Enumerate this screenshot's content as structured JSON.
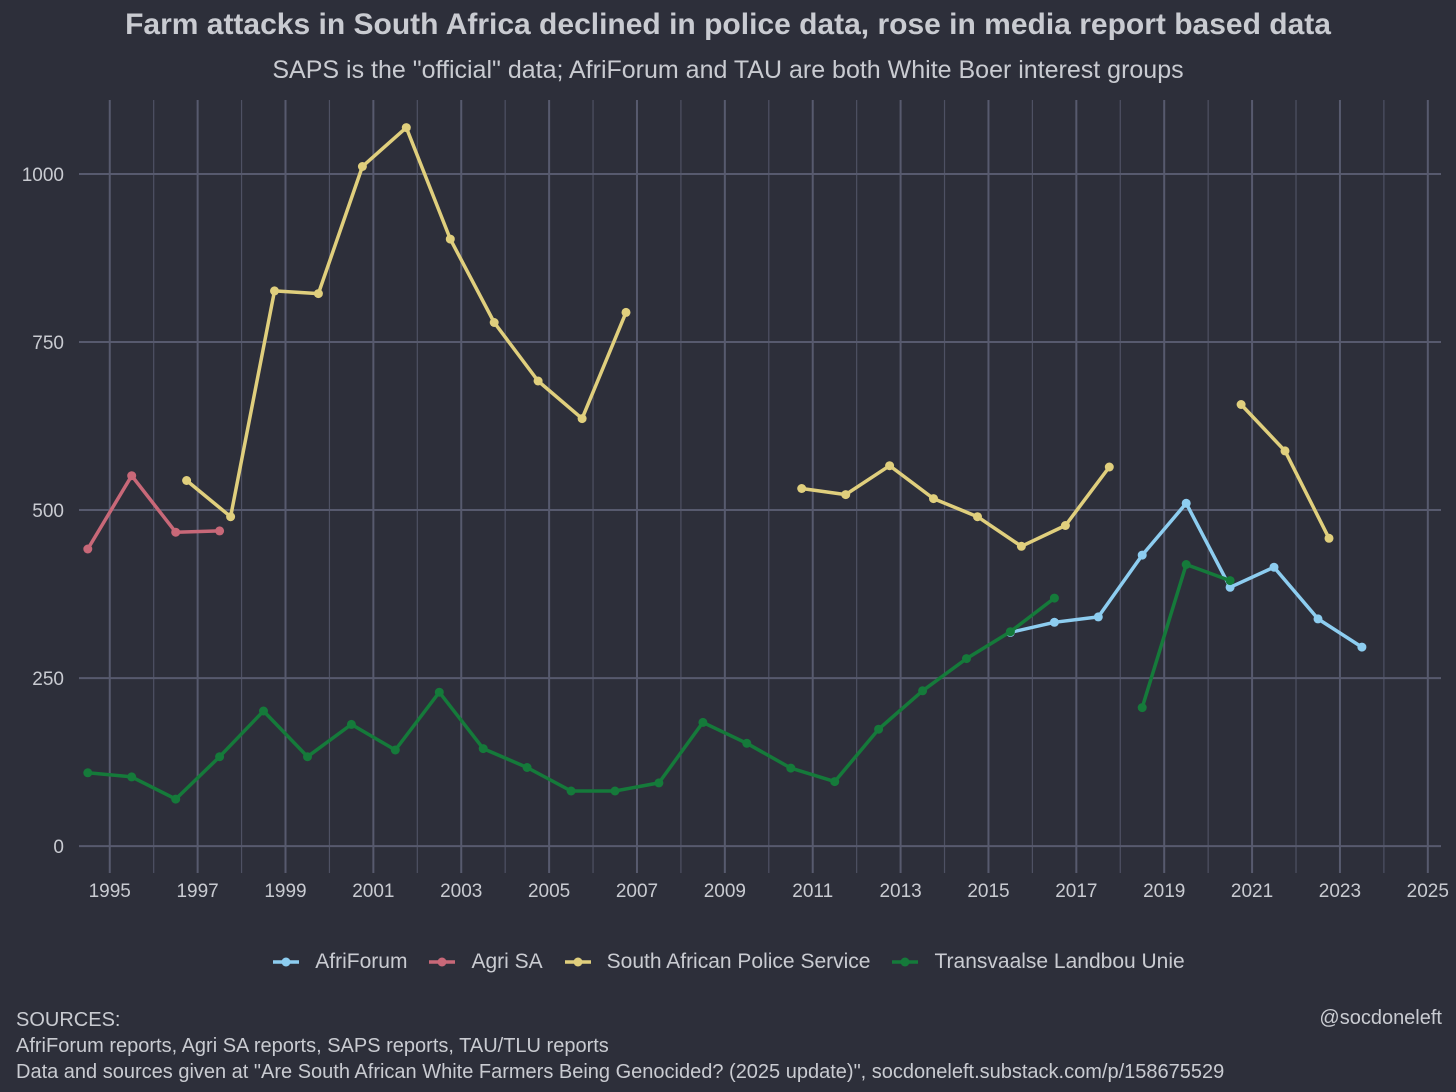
{
  "chart_data": {
    "type": "line",
    "title": "Farm attacks in South Africa declined in police data, rose in media report based data",
    "subtitle": "SAPS is the \"official\" data; AfriForum and TAU are both White Boer interest groups",
    "xlabel": "",
    "ylabel": "",
    "xlim": [
      1994.3,
      2025.3
    ],
    "ylim": [
      -40,
      1110
    ],
    "x_ticks": [
      1995,
      1997,
      1999,
      2001,
      2003,
      2005,
      2007,
      2009,
      2011,
      2013,
      2015,
      2017,
      2019,
      2021,
      2023,
      2025
    ],
    "y_ticks": [
      0,
      250,
      500,
      750,
      1000
    ],
    "grid": true,
    "legend_position": "bottom",
    "series": [
      {
        "name": "AfriForum",
        "color": "#8dcdf0",
        "segments": [
          [
            [
              2015.5,
              318
            ],
            [
              2016.5,
              333
            ],
            [
              2017.5,
              341
            ],
            [
              2018.5,
              433
            ],
            [
              2019.5,
              510
            ],
            [
              2020.5,
              385
            ],
            [
              2021.5,
              415
            ],
            [
              2022.5,
              338
            ],
            [
              2023.5,
              296
            ]
          ]
        ]
      },
      {
        "name": "Agri SA",
        "color": "#c86878",
        "segments": [
          [
            [
              1994.5,
              442
            ],
            [
              1995.5,
              551
            ],
            [
              1996.5,
              467
            ],
            [
              1997.5,
              469
            ]
          ]
        ]
      },
      {
        "name": "South African Police Service",
        "color": "#e0cf7d",
        "segments": [
          [
            [
              1996.75,
              544
            ],
            [
              1997.75,
              490
            ],
            [
              1998.75,
              826
            ],
            [
              1999.75,
              822
            ],
            [
              2000.75,
              1011
            ],
            [
              2001.75,
              1069
            ],
            [
              2002.75,
              903
            ],
            [
              2003.75,
              779
            ],
            [
              2004.75,
              692
            ],
            [
              2005.75,
              636
            ],
            [
              2006.75,
              794
            ]
          ],
          [
            [
              2010.75,
              532
            ],
            [
              2011.75,
              523
            ],
            [
              2012.75,
              566
            ],
            [
              2013.75,
              517
            ],
            [
              2014.75,
              490
            ],
            [
              2015.75,
              446
            ],
            [
              2016.75,
              477
            ],
            [
              2017.75,
              564
            ]
          ],
          [
            [
              2020.75,
              657
            ],
            [
              2021.75,
              588
            ],
            [
              2022.75,
              458
            ]
          ]
        ]
      },
      {
        "name": "Transvaalse Landbou Unie",
        "color": "#157a3a",
        "segments": [
          [
            [
              1994.5,
              109
            ],
            [
              1995.5,
              103
            ],
            [
              1996.5,
              70
            ],
            [
              1997.5,
              133
            ],
            [
              1998.5,
              201
            ],
            [
              1999.5,
              133
            ],
            [
              2000.5,
              181
            ],
            [
              2001.5,
              143
            ],
            [
              2002.5,
              229
            ],
            [
              2003.5,
              145
            ],
            [
              2004.5,
              117
            ],
            [
              2005.5,
              82
            ],
            [
              2006.5,
              82
            ],
            [
              2007.5,
              94
            ],
            [
              2008.5,
              184
            ],
            [
              2009.5,
              153
            ],
            [
              2010.5,
              116
            ],
            [
              2011.5,
              96
            ],
            [
              2012.5,
              174
            ],
            [
              2013.5,
              231
            ],
            [
              2014.5,
              279
            ],
            [
              2015.5,
              319
            ],
            [
              2016.5,
              369
            ]
          ],
          [
            [
              2018.5,
              206
            ],
            [
              2019.5,
              419
            ],
            [
              2020.5,
              395
            ]
          ]
        ]
      }
    ]
  },
  "footer": {
    "sources_heading": "SOURCES:",
    "sources_line1": "AfriForum reports, Agri SA reports, SAPS reports, TAU/TLU reports",
    "sources_line2": "Data and sources given at \"Are South African White Farmers Being Genocided? (2025 update)\", socdoneleft.substack.com/p/158675529",
    "credit": "@socdoneleft"
  },
  "colors": {
    "background": "#2d2f3a",
    "grid": "#575a6e",
    "text": "#c9cbd1"
  }
}
